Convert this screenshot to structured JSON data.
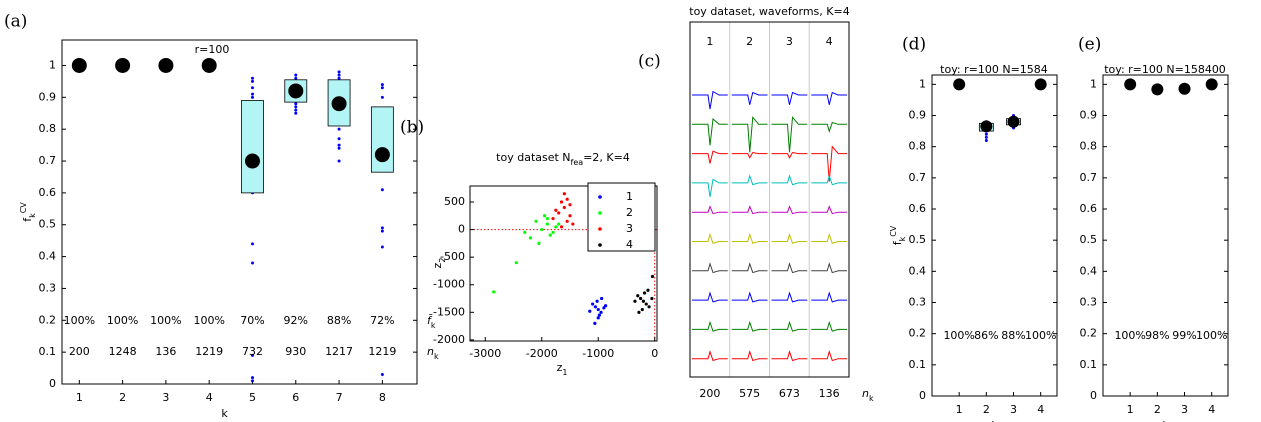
{
  "chart_data": [
    {
      "type": "box",
      "label": "(a)",
      "title": "r=100",
      "xticks": [
        1,
        2,
        3,
        4,
        5,
        6,
        7,
        8
      ],
      "xlim": [
        0.6,
        8.8
      ],
      "ylim": [
        0,
        1.08
      ],
      "yticks": [
        0,
        0.1,
        0.2,
        0.3,
        0.4,
        0.5,
        0.6,
        0.7,
        0.8,
        0.9,
        1
      ],
      "values": [
        1,
        1,
        1,
        1,
        0.7,
        0.92,
        0.88,
        0.72
      ],
      "value_labels": [
        "100%",
        "100%",
        "100%",
        "100%",
        "70%",
        "92%",
        "88%",
        "72%"
      ],
      "box_low": [
        1,
        1,
        1,
        1,
        0.6,
        0.885,
        0.81,
        0.665
      ],
      "box_high": [
        1,
        1,
        1,
        1,
        0.89,
        0.955,
        0.955,
        0.87
      ],
      "points": [
        [
          1
        ],
        [
          1
        ],
        [
          1
        ],
        [
          1
        ],
        [
          0.96,
          0.95,
          0.93,
          0.91,
          0.9,
          0.86,
          0.82,
          0.8,
          0.79,
          0.75,
          0.62,
          0.6,
          0.44,
          0.38,
          0.09,
          0.02,
          0.01
        ],
        [
          0.97,
          0.96,
          0.95,
          0.88,
          0.87,
          0.86,
          0.85
        ],
        [
          0.98,
          0.97,
          0.96,
          0.95,
          0.8,
          0.77,
          0.75,
          0.74,
          0.7
        ],
        [
          0.94,
          0.93,
          0.9,
          0.84,
          0.82,
          0.8,
          0.7,
          0.61,
          0.49,
          0.48,
          0.43,
          0.03
        ]
      ],
      "counts": [
        200,
        1248,
        136,
        1219,
        732,
        930,
        1217,
        1219
      ],
      "value_row_label": {
        "base": "f̄",
        "sub": "k"
      },
      "count_row_label": {
        "base": "n",
        "sub": "k"
      },
      "ylabel": {
        "base": "f",
        "sub": "k",
        "sup": "CV"
      },
      "xlabel": "k",
      "box_color": "#b3f5f5",
      "point_color": "#0000ff",
      "mean_color": "#000000"
    },
    {
      "type": "scatter",
      "label": "(b)",
      "title": {
        "base": "toy dataset N",
        "sub": "fea",
        "rest": "=2, K=4"
      },
      "xlabel": {
        "base": "z",
        "sub": "1"
      },
      "ylabel": {
        "base": "z",
        "sub": "2"
      },
      "xlim": [
        -3270,
        40
      ],
      "xticks": [
        -3000,
        -2000,
        -1000,
        0
      ],
      "ylim": [
        -2020,
        790
      ],
      "yticks": [
        -2000,
        -1500,
        -1000,
        -500,
        0,
        500
      ],
      "ref_lines": {
        "x": 0,
        "y": 0,
        "color": "#ff0000"
      },
      "legend": "upper right",
      "series": [
        {
          "name": "1",
          "color": "#0000ff",
          "x": [
            -1000,
            -1050,
            -950,
            -1100,
            -900,
            -1000,
            -1020,
            -980,
            -1150,
            -870,
            -1060,
            -940
          ],
          "y": [
            -1450,
            -1400,
            -1500,
            -1350,
            -1420,
            -1600,
            -1300,
            -1550,
            -1480,
            -1380,
            -1700,
            -1250
          ]
        },
        {
          "name": "2",
          "color": "#00ff00",
          "x": [
            -1900,
            -2000,
            -1800,
            -2100,
            -1950,
            -1850,
            -2200,
            -1750,
            -2050,
            -1700,
            -2450,
            -2850,
            -2300,
            -1900
          ],
          "y": [
            100,
            0,
            -50,
            150,
            250,
            -100,
            -150,
            50,
            -250,
            100,
            -600,
            -1130,
            -50,
            200
          ]
        },
        {
          "name": "3",
          "color": "#ff0000",
          "x": [
            -1700,
            -1600,
            -1500,
            -1650,
            -1550,
            -1750,
            -1450,
            -1600,
            -1800,
            -1500,
            -1650,
            -1550
          ],
          "y": [
            300,
            400,
            250,
            500,
            150,
            350,
            100,
            650,
            200,
            450,
            50,
            550
          ]
        },
        {
          "name": "4",
          "color": "#000000",
          "x": [
            -200,
            -250,
            -150,
            -300,
            -100,
            -220,
            -350,
            -180,
            -50,
            -280,
            -120,
            -40
          ],
          "y": [
            -1300,
            -1250,
            -1350,
            -1200,
            -1400,
            -1450,
            -1300,
            -1150,
            -1250,
            -1500,
            -1100,
            -850
          ]
        }
      ]
    },
    {
      "type": "waveform",
      "label": "(c)",
      "title": "toy dataset, waveforms, K=4",
      "channels": [
        1,
        2,
        3,
        4
      ],
      "counts": [
        200,
        575,
        673,
        136
      ],
      "count_row_label": {
        "base": "n",
        "sub": "k"
      },
      "series": [
        {
          "color": "#0000ff",
          "values": [
            -1,
            -0.7,
            -0.7,
            -0.7
          ]
        },
        {
          "color": "#008000",
          "values": [
            -1.5,
            -2,
            -2,
            -0.5
          ]
        },
        {
          "color": "#ff0000",
          "values": [
            -0.7,
            -0.3,
            -0.3,
            -2
          ]
        },
        {
          "color": "#00bfbf",
          "values": [
            -1,
            0.5,
            0.5,
            0.5
          ]
        },
        {
          "color": "#bf00bf",
          "values": [
            0.4,
            0.4,
            0.4,
            0.4
          ]
        },
        {
          "color": "#bfbf00",
          "values": [
            0.5,
            0.5,
            0.5,
            0.5
          ]
        },
        {
          "color": "#404040",
          "values": [
            0.5,
            0.5,
            0.5,
            0.5
          ]
        },
        {
          "color": "#0000ff",
          "values": [
            0.5,
            0.5,
            0.5,
            0.5
          ]
        },
        {
          "color": "#008000",
          "values": [
            0.5,
            0.5,
            0.5,
            0.5
          ]
        },
        {
          "color": "#ff0000",
          "values": [
            0.5,
            0.5,
            0.5,
            0.5
          ]
        }
      ]
    },
    {
      "type": "box",
      "label": "(d)",
      "title": "toy: r=100 N=1584",
      "xticks": [
        1,
        2,
        3,
        4
      ],
      "xlim": [
        0,
        4.6
      ],
      "ylim": [
        0,
        1.03
      ],
      "yticks": [
        0,
        0.1,
        0.2,
        0.3,
        0.4,
        0.5,
        0.6,
        0.7,
        0.8,
        0.9,
        1
      ],
      "values": [
        1,
        0.865,
        0.88,
        1
      ],
      "value_labels": [
        "100%",
        "86%",
        "88%",
        "100%"
      ],
      "box_low": [
        1,
        0.85,
        0.87,
        1
      ],
      "box_high": [
        1,
        0.875,
        0.89,
        1
      ],
      "points": [
        [
          1
        ],
        [
          0.88,
          0.87,
          0.85,
          0.84,
          0.83,
          0.82
        ],
        [
          0.9,
          0.89,
          0.87,
          0.86
        ],
        [
          1
        ]
      ],
      "ylabel": {
        "base": "f",
        "sub": "k",
        "sup": "CV"
      },
      "xlabel": "k",
      "box_color": "#b3f5f5",
      "point_color": "#0000ff",
      "mean_color": "#000000"
    },
    {
      "type": "box",
      "label": "(e)",
      "title": "toy: r=100 N=158400",
      "xticks": [
        1,
        2,
        3,
        4
      ],
      "xlim": [
        0,
        4.6
      ],
      "ylim": [
        0,
        1.03
      ],
      "yticks": [
        0,
        0.1,
        0.2,
        0.3,
        0.4,
        0.5,
        0.6,
        0.7,
        0.8,
        0.9,
        1
      ],
      "values": [
        1,
        0.984,
        0.986,
        1
      ],
      "value_labels": [
        "100%",
        "98%",
        "99%",
        "100%"
      ],
      "box_low": [
        1,
        0.984,
        0.986,
        1
      ],
      "box_high": [
        1,
        0.984,
        0.986,
        1
      ],
      "points": [
        [
          1
        ],
        [
          0.984
        ],
        [
          0.986
        ],
        [
          1
        ]
      ],
      "xlabel": "k",
      "box_color": "#b3f5f5",
      "point_color": "#0000ff",
      "mean_color": "#000000"
    }
  ]
}
